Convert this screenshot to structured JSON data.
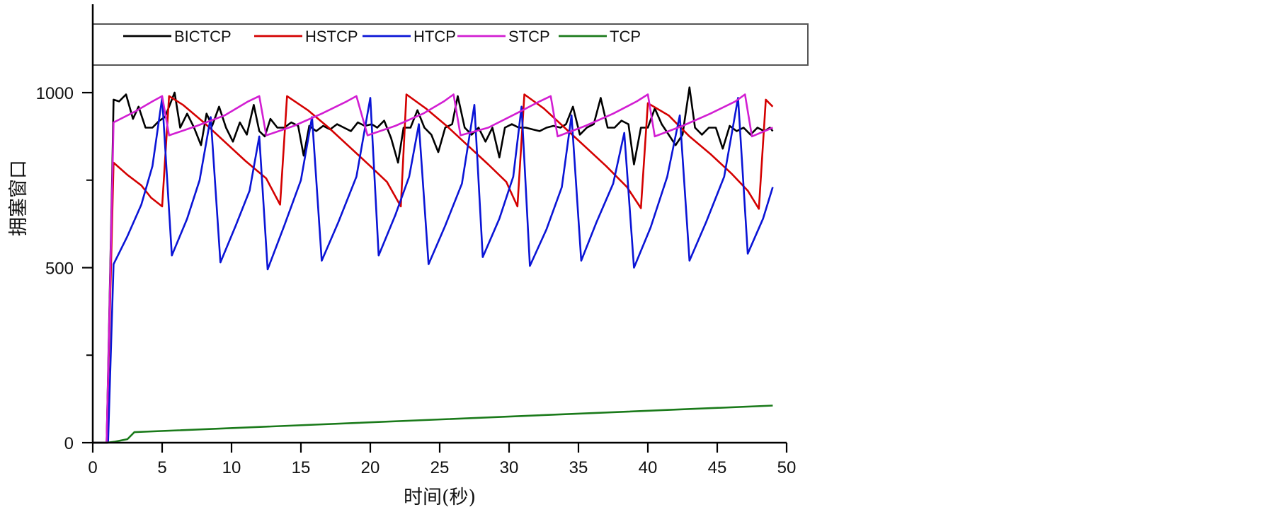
{
  "chart_data": {
    "type": "line",
    "title": "",
    "xlabel": "时间(秒)",
    "ylabel": "拥塞窗口",
    "xlim": [
      0,
      50
    ],
    "ylim": [
      0,
      1250
    ],
    "xticks": [
      0,
      5,
      10,
      15,
      20,
      25,
      30,
      35,
      40,
      45,
      50
    ],
    "xtick_labels": [
      "0",
      "5",
      "10",
      "15",
      "20",
      "25",
      "30",
      "35",
      "40",
      "45",
      "50"
    ],
    "yticks": [
      0,
      500,
      1000
    ],
    "ytick_labels": [
      "0",
      "500",
      "1000"
    ],
    "yminor_ticks": [
      250,
      750
    ],
    "grid": false,
    "legend_position": "top",
    "series": [
      {
        "name": "BICTCP",
        "color": "#000000",
        "x": [
          0,
          1.0,
          1.4,
          1.5,
          1.9,
          2.4,
          2.9,
          3.3,
          3.8,
          4.3,
          4.8,
          5.2,
          5.5,
          5.9,
          6.3,
          6.8,
          7.3,
          7.8,
          8.2,
          8.6,
          9.1,
          9.6,
          10.1,
          10.6,
          11.1,
          11.6,
          12.0,
          12.4,
          12.8,
          13.3,
          13.8,
          14.3,
          14.8,
          15.2,
          15.6,
          16.1,
          16.6,
          17.1,
          17.6,
          18.1,
          18.6,
          19.1,
          19.6,
          20.1,
          20.5,
          21.0,
          21.5,
          22.0,
          22.4,
          22.9,
          23.4,
          23.9,
          24.4,
          24.9,
          25.4,
          25.9,
          26.3,
          26.8,
          27.3,
          27.8,
          28.3,
          28.8,
          29.3,
          29.7,
          30.2,
          30.7,
          31.2,
          31.7,
          32.2,
          32.7,
          33.2,
          33.7,
          34.1,
          34.6,
          35.1,
          35.6,
          36.1,
          36.6,
          37.1,
          37.6,
          38.1,
          38.6,
          39.0,
          39.5,
          40.0,
          40.5,
          41.0,
          41.5,
          42.0,
          42.5,
          43.0,
          43.4,
          43.9,
          44.4,
          44.9,
          45.4,
          45.9,
          46.4,
          46.9,
          47.4,
          47.9,
          48.4,
          48.8,
          49.0
        ],
        "y": [
          0,
          0,
          760,
          980,
          975,
          995,
          925,
          960,
          900,
          900,
          920,
          930,
          960,
          1000,
          900,
          940,
          900,
          850,
          940,
          905,
          960,
          900,
          860,
          915,
          880,
          965,
          890,
          875,
          925,
          900,
          900,
          915,
          905,
          820,
          905,
          890,
          905,
          895,
          910,
          900,
          890,
          915,
          905,
          910,
          900,
          920,
          870,
          800,
          900,
          900,
          950,
          900,
          880,
          830,
          900,
          910,
          990,
          900,
          880,
          900,
          860,
          900,
          815,
          900,
          910,
          900,
          900,
          895,
          890,
          900,
          905,
          900,
          910,
          960,
          880,
          900,
          910,
          985,
          900,
          900,
          920,
          910,
          795,
          900,
          900,
          955,
          910,
          880,
          850,
          880,
          1015,
          900,
          880,
          900,
          900,
          840,
          905,
          890,
          900,
          880,
          900,
          890,
          900,
          890
        ]
      },
      {
        "name": "HSTCP",
        "color": "#d40000",
        "x": [
          0,
          1.0,
          1.5,
          2.5,
          3.5,
          4.2,
          5.0,
          5.5,
          6.5,
          8.0,
          9.5,
          11.0,
          12.5,
          13.5,
          14.0,
          15.5,
          17.0,
          18.5,
          20.0,
          21.2,
          22.2,
          22.6,
          24.0,
          25.5,
          27.0,
          28.5,
          29.8,
          30.6,
          31.1,
          32.5,
          34.0,
          35.5,
          37.0,
          38.5,
          39.5,
          40.0,
          41.5,
          43.0,
          44.5,
          46.0,
          47.2,
          48.0,
          48.5,
          49.0
        ],
        "y": [
          0,
          0,
          800,
          765,
          735,
          700,
          675,
          990,
          965,
          915,
          860,
          805,
          755,
          680,
          990,
          950,
          900,
          845,
          790,
          745,
          675,
          995,
          955,
          905,
          850,
          795,
          745,
          675,
          995,
          955,
          900,
          845,
          790,
          730,
          670,
          970,
          935,
          875,
          825,
          770,
          720,
          668,
          980,
          960
        ]
      },
      {
        "name": "HTCP",
        "color": "#0a14d6",
        "x": [
          0,
          1.1,
          1.5,
          2.5,
          3.5,
          4.3,
          5.0,
          5.7,
          6.8,
          7.7,
          8.5,
          9.2,
          10.3,
          11.3,
          12.0,
          12.6,
          13.8,
          15.0,
          15.8,
          16.5,
          17.7,
          19.0,
          20.0,
          20.6,
          21.8,
          22.8,
          23.5,
          24.2,
          25.4,
          26.6,
          27.5,
          28.1,
          29.3,
          30.3,
          30.9,
          31.5,
          32.7,
          33.8,
          34.5,
          35.2,
          36.3,
          37.5,
          38.3,
          39.0,
          40.2,
          41.4,
          42.3,
          43.0,
          44.2,
          45.5,
          46.5,
          47.2,
          48.3,
          49.0
        ],
        "y": [
          0,
          0,
          510,
          590,
          680,
          790,
          985,
          535,
          640,
          750,
          930,
          515,
          620,
          720,
          875,
          495,
          620,
          750,
          930,
          520,
          630,
          760,
          985,
          535,
          650,
          760,
          910,
          510,
          620,
          740,
          965,
          530,
          640,
          760,
          960,
          505,
          610,
          730,
          935,
          520,
          630,
          740,
          885,
          500,
          615,
          760,
          935,
          520,
          630,
          760,
          985,
          540,
          640,
          730
        ]
      },
      {
        "name": "STCP",
        "color": "#d21ed2",
        "x": [
          0,
          1.0,
          1.5,
          3.0,
          4.3,
          5.0,
          5.5,
          7.5,
          9.5,
          11.2,
          12.0,
          12.5,
          14.5,
          16.5,
          18.3,
          19.0,
          19.8,
          21.8,
          23.8,
          25.3,
          26.0,
          26.5,
          28.5,
          30.5,
          32.2,
          33.0,
          33.5,
          35.5,
          37.5,
          39.2,
          40.0,
          40.5,
          42.5,
          44.5,
          46.3,
          47.0,
          47.5,
          49.0
        ],
        "y": [
          0,
          0,
          915,
          945,
          975,
          990,
          878,
          905,
          935,
          975,
          990,
          878,
          905,
          940,
          975,
          990,
          878,
          905,
          940,
          975,
          995,
          878,
          900,
          940,
          975,
          990,
          875,
          905,
          940,
          975,
          995,
          875,
          905,
          940,
          975,
          995,
          875,
          900
        ]
      },
      {
        "name": "TCP",
        "color": "#1a7a1a",
        "x": [
          0,
          1.0,
          1.6,
          2.5,
          3.0,
          49.0
        ],
        "y": [
          0,
          0,
          3,
          10,
          30,
          106
        ]
      }
    ]
  }
}
